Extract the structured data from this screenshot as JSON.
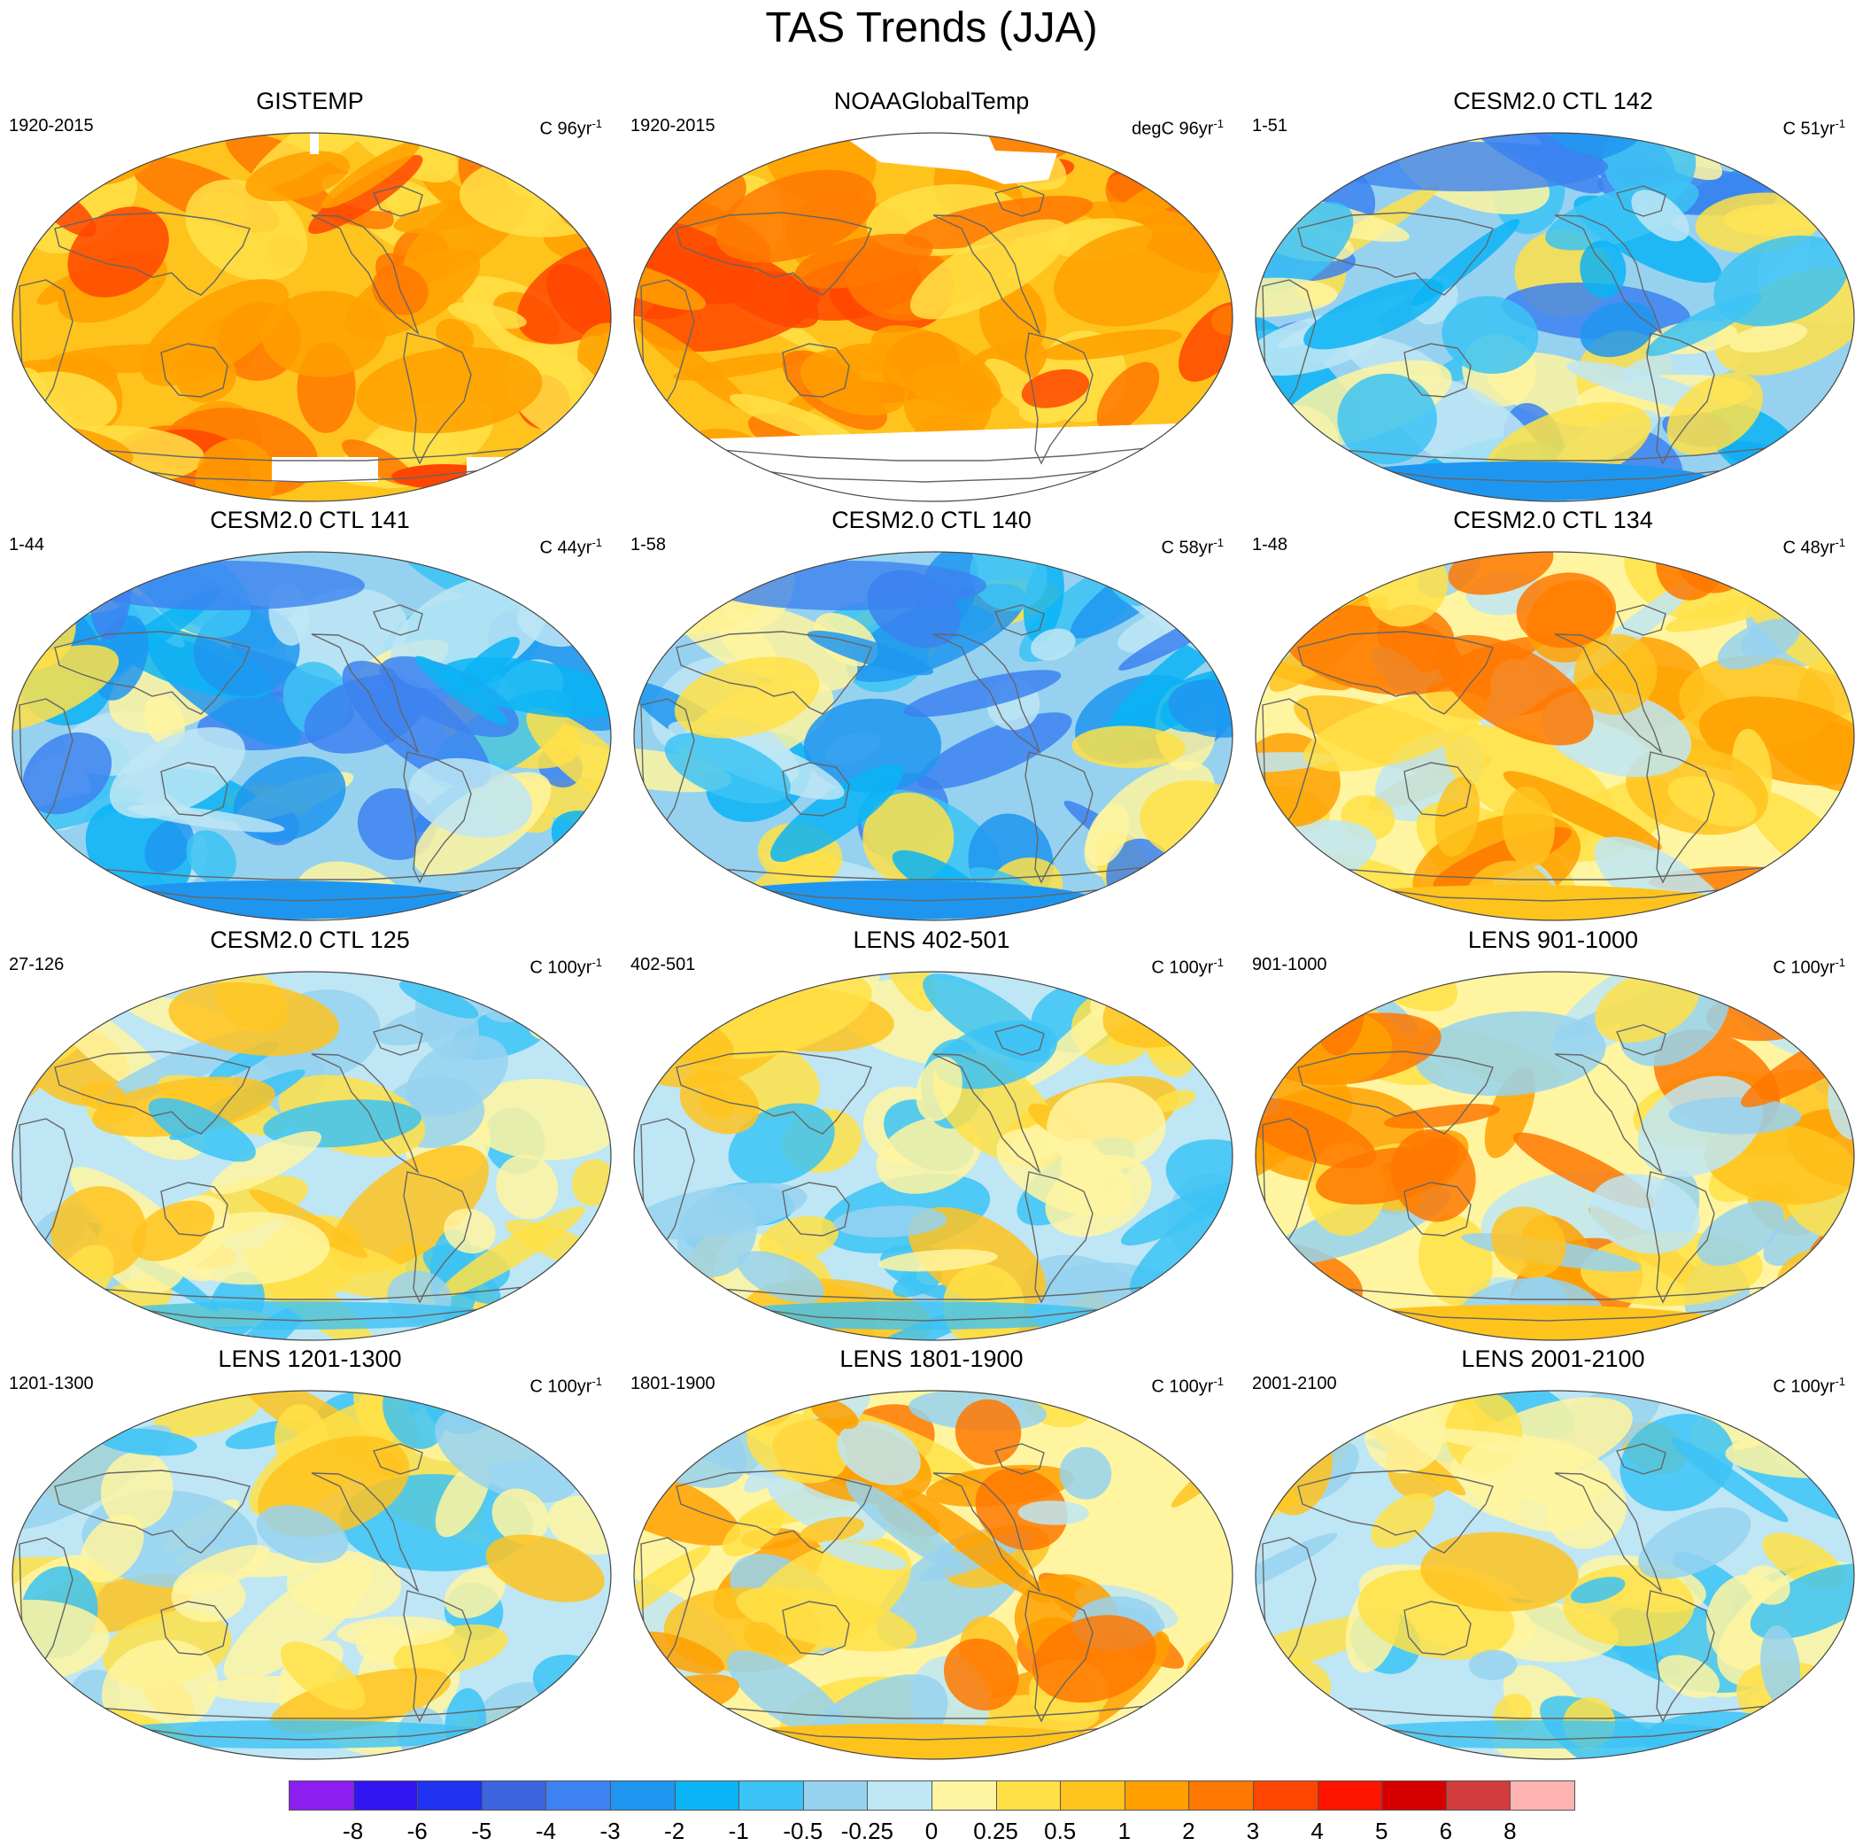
{
  "title": "TAS Trends (JJA)",
  "panels": [
    {
      "title": "GISTEMP",
      "period": "1920-2015",
      "units": "C 96yr",
      "exponent": "-1",
      "style": "warm",
      "mask": "gis"
    },
    {
      "title": "NOAAGlobalTemp",
      "period": "1920-2015",
      "units": "degC 96yr",
      "exponent": "-1",
      "style": "warm",
      "mask": "noaa"
    },
    {
      "title": "CESM2.0 CTL 142",
      "period": "1-51",
      "units": "C 51yr",
      "exponent": "-1",
      "style": "cold",
      "mask": "none"
    },
    {
      "title": "CESM2.0 CTL 141",
      "period": "1-44",
      "units": "C 44yr",
      "exponent": "-1",
      "style": "cold",
      "mask": "none"
    },
    {
      "title": "CESM2.0 CTL 140",
      "period": "1-58",
      "units": "C 58yr",
      "exponent": "-1",
      "style": "cold",
      "mask": "none"
    },
    {
      "title": "CESM2.0 CTL 134",
      "period": "1-48",
      "units": "C 48yr",
      "exponent": "-1",
      "style": "mixwarm",
      "mask": "none"
    },
    {
      "title": "CESM2.0 CTL 125",
      "period": "27-126",
      "units": "C 100yr",
      "exponent": "-1",
      "style": "mixcool",
      "mask": "none"
    },
    {
      "title": "LENS 402-501",
      "period": "402-501",
      "units": "C 100yr",
      "exponent": "-1",
      "style": "mixcool",
      "mask": "none"
    },
    {
      "title": "LENS 901-1000",
      "period": "901-1000",
      "units": "C 100yr",
      "exponent": "-1",
      "style": "mixwarm",
      "mask": "none"
    },
    {
      "title": "LENS 1201-1300",
      "period": "1201-1300",
      "units": "C 100yr",
      "exponent": "-1",
      "style": "mixcool",
      "mask": "none"
    },
    {
      "title": "LENS 1801-1900",
      "period": "1801-1900",
      "units": "C 100yr",
      "exponent": "-1",
      "style": "mixwarm",
      "mask": "none"
    },
    {
      "title": "LENS 2001-2100",
      "period": "2001-2100",
      "units": "C 100yr",
      "exponent": "-1",
      "style": "mixcool",
      "mask": "none"
    }
  ],
  "colorbar": {
    "colors": [
      "#8c1ef0",
      "#3214f0",
      "#1e32f0",
      "#3c64dc",
      "#3c82f0",
      "#1e96f0",
      "#0ab4f5",
      "#3cc3f5",
      "#96d2f0",
      "#bee6f5",
      "#fff5a0",
      "#ffe146",
      "#ffc31e",
      "#ffa000",
      "#ff7800",
      "#ff4600",
      "#ff1400",
      "#d70000",
      "#d23c3c",
      "#ffb4b4"
    ],
    "labels": [
      "-8",
      "-6",
      "-5",
      "-4",
      "-3",
      "-2",
      "-1",
      "-0.5",
      "-0.25",
      "0",
      "0.25",
      "0.5",
      "1",
      "2",
      "3",
      "4",
      "5",
      "6",
      "8"
    ]
  }
}
